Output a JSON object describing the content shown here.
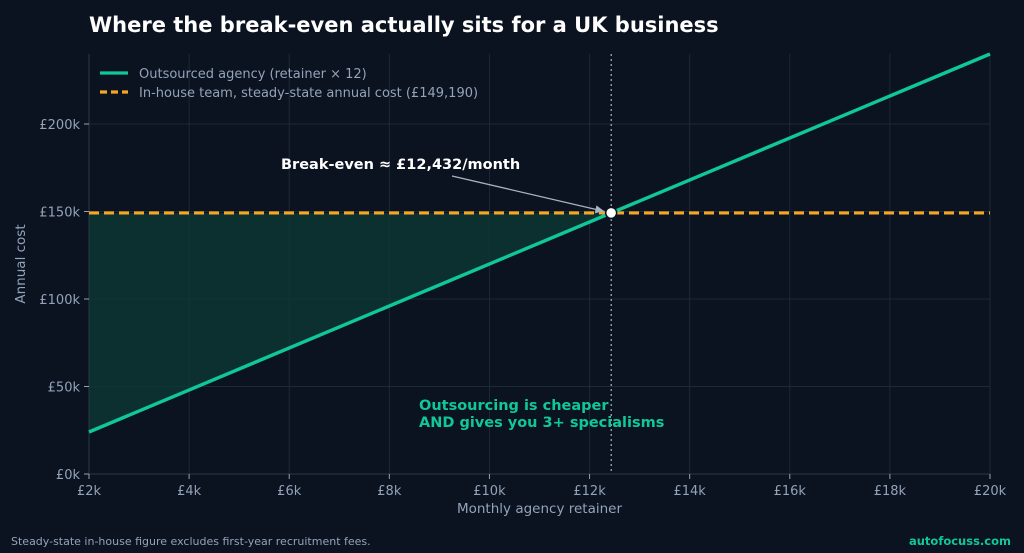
{
  "colors": {
    "background": "#0b1220",
    "grid": "#1c2a36",
    "text_muted": "#93a3b8",
    "agency_line": "#10c79a",
    "inhouse_line": "#f5a623",
    "shade": "#0d3a36",
    "title": "#ffffff"
  },
  "chart_data": {
    "type": "line",
    "title": "Where the break-even actually sits for a UK business",
    "xlabel": "Monthly agency retainer",
    "ylabel": "Annual cost",
    "xlim": [
      2000,
      20000
    ],
    "ylim": [
      0,
      240000
    ],
    "x_ticks": [
      2000,
      4000,
      6000,
      8000,
      10000,
      12000,
      14000,
      16000,
      18000,
      20000
    ],
    "x_tick_labels": [
      "£2k",
      "£4k",
      "£6k",
      "£8k",
      "£10k",
      "£12k",
      "£14k",
      "£16k",
      "£18k",
      "£20k"
    ],
    "y_ticks": [
      0,
      50000,
      100000,
      150000,
      200000
    ],
    "y_tick_labels": [
      "£0k",
      "£50k",
      "£100k",
      "£150k",
      "£200k"
    ],
    "grid": true,
    "legend_position": "top-left",
    "series": [
      {
        "name": "Outsourced agency (retainer × 12)",
        "style": "solid",
        "color": "#10c79a",
        "x": [
          2000,
          20000
        ],
        "y": [
          24000,
          240000
        ]
      },
      {
        "name": "In-house team, steady-state annual cost (£149,190)",
        "style": "dashed",
        "color": "#f5a623",
        "x": [
          2000,
          20000
        ],
        "y": [
          149190,
          149190
        ]
      }
    ],
    "break_even": {
      "x": 12432,
      "y": 149190,
      "label": "Break-even ≈ £12,432/month"
    },
    "shaded_region": {
      "x_from": 2000,
      "x_to": 12432,
      "label_lines": [
        "Outsourcing is cheaper",
        "AND gives you 3+ specialisms"
      ]
    }
  },
  "footer": {
    "note": "Steady-state in-house figure excludes first-year recruitment fees.",
    "brand": "autofocuss.com"
  }
}
